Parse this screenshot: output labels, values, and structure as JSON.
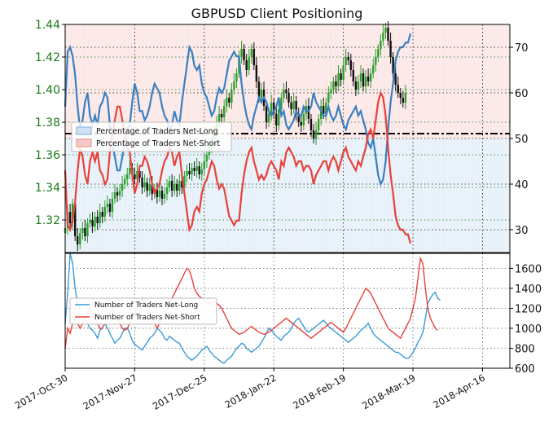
{
  "chart_data": [
    {
      "type": "candlestick",
      "title": "GBPUSD Client Positioning",
      "ylim_price": [
        1.3,
        1.44
      ],
      "yticks_price": [
        "1.32",
        "1.34",
        "1.36",
        "1.38",
        "1.40",
        "1.42",
        "1.44"
      ],
      "ylim_percent": [
        25,
        75
      ],
      "yticks_percent": [
        "30",
        "40",
        "50",
        "60",
        "70"
      ],
      "percent_reference_line": 50,
      "grid": true,
      "legend": {
        "position": "middle-left",
        "items": [
          "Percentage of Traders Net-Long",
          "Percentage of Traders Net-Short"
        ]
      },
      "colors": {
        "up": "#2ca02c",
        "down": "#111111",
        "net_long": "#3a7fc1",
        "net_short": "#e8413a",
        "long_fill": "#dbe9f6",
        "short_fill": "#f8d4d2",
        "price_axis": "#1a7a1a"
      },
      "price_series": {
        "name": "GBPUSD",
        "start_date": "2017-10-30",
        "interval": "1 day",
        "closes": [
          1.315,
          1.325,
          1.318,
          1.33,
          1.31,
          1.305,
          1.312,
          1.315,
          1.31,
          1.318,
          1.32,
          1.316,
          1.322,
          1.318,
          1.325,
          1.322,
          1.328,
          1.33,
          1.325,
          1.333,
          1.337,
          1.335,
          1.338,
          1.342,
          1.345,
          1.348,
          1.352,
          1.348,
          1.345,
          1.35,
          1.346,
          1.34,
          1.343,
          1.338,
          1.342,
          1.336,
          1.339,
          1.334,
          1.338,
          1.333,
          1.336,
          1.34,
          1.344,
          1.338,
          1.342,
          1.338,
          1.344,
          1.34,
          1.347,
          1.35,
          1.348,
          1.352,
          1.35,
          1.353,
          1.348,
          1.351,
          1.356,
          1.36,
          1.365,
          1.37,
          1.375,
          1.38,
          1.385,
          1.383,
          1.39,
          1.395,
          1.392,
          1.4,
          1.405,
          1.41,
          1.42,
          1.425,
          1.418,
          1.412,
          1.42,
          1.425,
          1.415,
          1.405,
          1.395,
          1.4,
          1.39,
          1.38,
          1.385,
          1.392,
          1.385,
          1.378,
          1.388,
          1.395,
          1.4,
          1.398,
          1.392,
          1.388,
          1.393,
          1.385,
          1.38,
          1.378,
          1.385,
          1.39,
          1.382,
          1.375,
          1.37,
          1.375,
          1.382,
          1.39,
          1.385,
          1.392,
          1.398,
          1.4,
          1.405,
          1.402,
          1.41,
          1.406,
          1.415,
          1.42,
          1.418,
          1.412,
          1.405,
          1.4,
          1.405,
          1.41,
          1.402,
          1.408,
          1.405,
          1.41,
          1.415,
          1.42,
          1.425,
          1.43,
          1.435,
          1.438,
          1.43,
          1.42,
          1.41,
          1.403,
          1.398,
          1.395,
          1.392,
          1.398
        ]
      },
      "net_long_percent": {
        "name": "Percentage of Traders Net-Long",
        "start_date": "2017-10-30",
        "interval": "1 day",
        "values": [
          57,
          69,
          70,
          68,
          64,
          57,
          52,
          54,
          58,
          60,
          55,
          53,
          55,
          53,
          57,
          58,
          60,
          59,
          53,
          49,
          46,
          43,
          43,
          46,
          49,
          52,
          53,
          58,
          62,
          60,
          56,
          56,
          54,
          55,
          57,
          60,
          62,
          61,
          60,
          57,
          55,
          54,
          52,
          53,
          56,
          54,
          53,
          58,
          62,
          66,
          70,
          69,
          66,
          65,
          66,
          62,
          60,
          59,
          57,
          55,
          56,
          59,
          61,
          60,
          61,
          64,
          67,
          68,
          69,
          68,
          68,
          62,
          58,
          55,
          53,
          52,
          55,
          57,
          59,
          58,
          59,
          58,
          56,
          55,
          56,
          57,
          59,
          55,
          56,
          53,
          52,
          53,
          54,
          56,
          55,
          55,
          57,
          56,
          56,
          57,
          60,
          58,
          57,
          56,
          55,
          55,
          57,
          55,
          54,
          55,
          57,
          55,
          53,
          52,
          54,
          55,
          56,
          57,
          55,
          56,
          54,
          52,
          49,
          48,
          50,
          46,
          42,
          40,
          41,
          45,
          52,
          58,
          62,
          67,
          69,
          70,
          70,
          71,
          71,
          73
        ]
      },
      "net_short_percent": {
        "name": "Percentage of Traders Net-Short",
        "start_date": "2017-10-30",
        "interval": "1 day",
        "values": [
          43,
          31,
          30,
          32,
          36,
          43,
          48,
          46,
          42,
          40,
          45,
          47,
          45,
          47,
          43,
          42,
          40,
          41,
          47,
          51,
          54,
          57,
          57,
          54,
          51,
          48,
          47,
          42,
          38,
          40,
          44,
          44,
          46,
          45,
          43,
          40,
          38,
          39,
          40,
          43,
          45,
          46,
          48,
          47,
          44,
          46,
          47,
          42,
          38,
          34,
          30,
          31,
          34,
          35,
          34,
          38,
          40,
          41,
          43,
          45,
          44,
          41,
          39,
          40,
          39,
          36,
          33,
          32,
          31,
          32,
          32,
          38,
          42,
          45,
          47,
          48,
          45,
          43,
          41,
          42,
          41,
          42,
          44,
          45,
          44,
          43,
          41,
          45,
          44,
          47,
          48,
          47,
          46,
          44,
          45,
          45,
          43,
          44,
          44,
          43,
          40,
          42,
          43,
          44,
          45,
          45,
          43,
          45,
          46,
          45,
          43,
          45,
          47,
          48,
          46,
          45,
          44,
          43,
          45,
          44,
          46,
          48,
          51,
          52,
          50,
          54,
          58,
          60,
          59,
          55,
          48,
          42,
          38,
          33,
          31,
          30,
          30,
          29,
          29,
          27
        ]
      }
    },
    {
      "type": "line",
      "ylim": [
        600,
        1750
      ],
      "yticks": [
        "600",
        "800",
        "1000",
        "1200",
        "1400",
        "1600"
      ],
      "grid": true,
      "legend": {
        "position": "middle-left",
        "items": [
          "Number of Traders Net-Long",
          "Number of Traders Net-Short"
        ]
      },
      "x_tick_labels": [
        "2017-Oct-30",
        "2017-Nov-27",
        "2017-Dec-25",
        "2018-Jan-22",
        "2018-Feb-19",
        "2018-Mar-19",
        "2018-Apr-16"
      ],
      "x_ticks_days": [
        0,
        28,
        56,
        84,
        112,
        140,
        168
      ],
      "x_range_days": [
        0,
        179
      ],
      "series": [
        {
          "name": "Number of Traders Net-Long",
          "start_date": "2017-10-30",
          "interval": "1 day",
          "values": [
            1050,
            1350,
            1750,
            1650,
            1400,
            1250,
            1180,
            1120,
            1100,
            1050,
            1000,
            980,
            950,
            900,
            980,
            1000,
            1050,
            1000,
            950,
            900,
            850,
            880,
            900,
            950,
            1000,
            1000,
            950,
            880,
            840,
            820,
            800,
            780,
            820,
            860,
            900,
            920,
            950,
            1000,
            980,
            950,
            900,
            880,
            920,
            900,
            880,
            860,
            850,
            800,
            760,
            720,
            700,
            680,
            700,
            720,
            750,
            780,
            800,
            820,
            780,
            750,
            720,
            700,
            680,
            660,
            650,
            680,
            700,
            720,
            760,
            800,
            820,
            850,
            840,
            800,
            780,
            760,
            780,
            800,
            820,
            860,
            900,
            950,
            1000,
            980,
            950,
            920,
            900,
            880,
            920,
            940,
            960,
            1000,
            1050,
            1080,
            1100,
            1060,
            1020,
            980,
            960,
            980,
            1000,
            1020,
            1040,
            1060,
            1080,
            1050,
            1020,
            1000,
            980,
            960,
            940,
            920,
            900,
            880,
            860,
            880,
            900,
            920,
            950,
            980,
            1000,
            1020,
            1050,
            1000,
            950,
            920,
            900,
            880,
            860,
            840,
            820,
            800,
            780,
            760,
            760,
            740,
            720,
            700,
            700,
            720,
            760,
            800,
            860,
            900,
            960,
            1100,
            1250,
            1300,
            1340,
            1360,
            1300,
            1280
          ]
        },
        {
          "name": "Number of Traders Net-Short",
          "start_date": "2017-10-30",
          "interval": "1 day",
          "values": [
            800,
            1000,
            950,
            1050,
            1100,
            1050,
            1000,
            1050,
            1100,
            1150,
            1200,
            1150,
            1100,
            1050,
            1000,
            1000,
            1050,
            1100,
            1150,
            1200,
            1150,
            1100,
            1050,
            1000,
            980,
            1000,
            1050,
            1100,
            1150,
            1200,
            1250,
            1300,
            1250,
            1200,
            1150,
            1100,
            1050,
            1000,
            1050,
            1100,
            1150,
            1200,
            1250,
            1300,
            1350,
            1400,
            1450,
            1500,
            1550,
            1600,
            1580,
            1500,
            1400,
            1350,
            1320,
            1300,
            1280,
            1260,
            1250,
            1260,
            1270,
            1250,
            1230,
            1200,
            1150,
            1100,
            1050,
            1000,
            980,
            960,
            940,
            950,
            960,
            980,
            1000,
            1020,
            1000,
            980,
            960,
            950,
            940,
            950,
            960,
            980,
            1000,
            1020,
            1040,
            1060,
            1080,
            1100,
            1080,
            1060,
            1040,
            1020,
            1000,
            980,
            960,
            940,
            920,
            900,
            920,
            940,
            960,
            980,
            1000,
            1020,
            1040,
            1060,
            1040,
            1020,
            1000,
            980,
            960,
            1000,
            1050,
            1100,
            1150,
            1200,
            1250,
            1300,
            1350,
            1400,
            1380,
            1350,
            1300,
            1250,
            1200,
            1150,
            1100,
            1050,
            1000,
            980,
            960,
            940,
            920,
            900,
            950,
            1000,
            1050,
            1100,
            1200,
            1300,
            1500,
            1700,
            1650,
            1400,
            1200,
            1100,
            1050,
            1000,
            980
          ]
        }
      ]
    }
  ]
}
